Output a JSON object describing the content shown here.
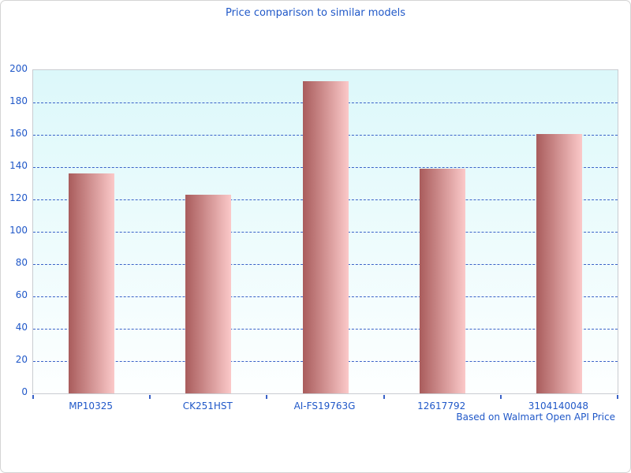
{
  "colors": {
    "accent_text": "#2058c8",
    "gridline": "#3a62c8",
    "plot_bg_top": "#dcf8fa",
    "plot_bg_bottom": "#fdffff",
    "bar_dark": "#a95c5c",
    "bar_light": "#fbc9c9",
    "frame": "#c9ccd1",
    "page_border": "#d4d4d4",
    "page_bg": "#ffffff"
  },
  "chart_data": {
    "type": "bar",
    "title": "Price comparison to similar models",
    "categories": [
      "MP10325",
      "CK251HST",
      "AI-FS19763G",
      "12617792",
      "3104140048"
    ],
    "values": [
      136,
      123,
      193,
      139,
      160.5
    ],
    "xlabel": "",
    "ylabel": "",
    "ylim": [
      0,
      200
    ],
    "yticks": [
      0,
      20,
      40,
      60,
      80,
      100,
      120,
      140,
      160,
      180,
      200
    ],
    "grid": "horizontal-dashed",
    "legend": "none",
    "footnote": "Based on Walmart Open API Price"
  }
}
